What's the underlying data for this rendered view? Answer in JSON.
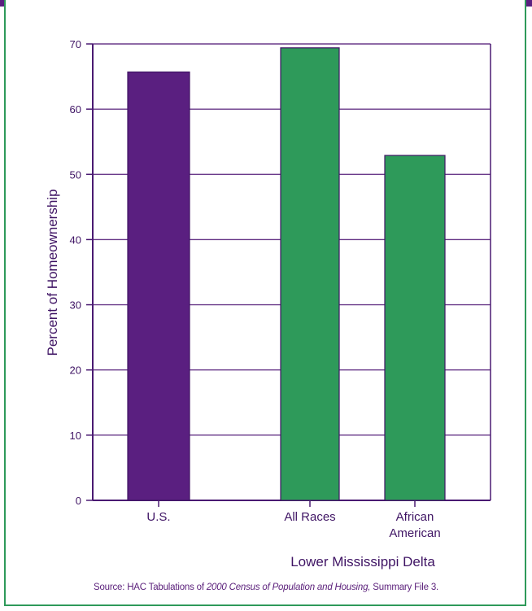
{
  "chart_data": {
    "type": "bar",
    "categories": [
      "U.S.",
      "All Races",
      "African American"
    ],
    "category_label_lines": [
      [
        "U.S."
      ],
      [
        "All Races"
      ],
      [
        "African",
        "American"
      ]
    ],
    "values": [
      65.7,
      69.4,
      52.9
    ],
    "bar_colors": [
      "#5a1f80",
      "#2e9a5a",
      "#2e9a5a"
    ],
    "group_label": "Lower Mississippi Delta",
    "ylabel": "Percent of Homeownership",
    "xlabel": "",
    "ylim": [
      0,
      70
    ],
    "yticks": [
      0,
      10,
      20,
      30,
      40,
      50,
      60,
      70
    ],
    "grid": true
  },
  "source": {
    "prefix": "Source: HAC Tabulations of ",
    "title": "2000 Census of Population and Housing,",
    "suffix": " Summary File 3."
  },
  "colors": {
    "top_band": "#5a1f80",
    "frame": "#2e9a5a",
    "axis": "#4a1a72",
    "grid": "#6a3a8a"
  }
}
